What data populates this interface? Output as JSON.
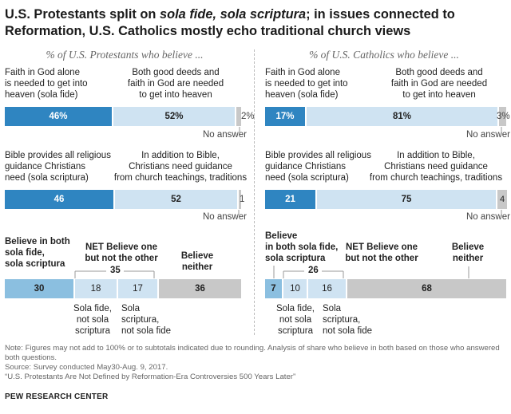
{
  "title_part1": "U.S. Protestants split on ",
  "title_italic1": "sola fide, sola scriptura",
  "title_part2": "; in issues connected to Reformation, U.S. Catholics mostly echo traditional church views",
  "colors": {
    "dark_blue": "#2f85c1",
    "light_blue": "#cfe3f2",
    "mid_blue": "#8bbfe0",
    "gray": "#c8c8c8",
    "na_gray": "#c8c8c8"
  },
  "chart_data": [
    {
      "panel": "protestants",
      "subtitle": "% of U.S. Protestants who believe ...",
      "rows": [
        {
          "type": "bar",
          "categories": [
            "Faith in God alone is needed to get into heaven (sola fide)",
            "Both good deeds and faith in God are needed to get into heaven",
            "No answer"
          ],
          "values": [
            46,
            52,
            2
          ],
          "value_labels": [
            "46%",
            "52%",
            "2%"
          ]
        },
        {
          "type": "bar",
          "categories": [
            "Bible provides all religious guidance Christians need (sola scriptura)",
            "In addition to Bible, Christians need guidance from church teachings, traditions",
            "No answer"
          ],
          "values": [
            46,
            52,
            1
          ],
          "value_labels": [
            "46",
            "52",
            "1"
          ]
        },
        {
          "type": "bar",
          "categories": [
            "Believe in both sola fide, sola scriptura",
            "Sola fide, not sola scriptura",
            "Sola scriptura, not sola fide",
            "Believe neither"
          ],
          "values": [
            30,
            18,
            17,
            36
          ],
          "value_labels": [
            "30",
            "18",
            "17",
            "36"
          ],
          "net_label": "NET Believe one but not the other",
          "net_value": "35"
        }
      ]
    },
    {
      "panel": "catholics",
      "subtitle": "% of U.S. Catholics who believe ...",
      "rows": [
        {
          "type": "bar",
          "categories": [
            "Faith in God alone is needed to get into heaven (sola fide)",
            "Both good deeds and faith in God are needed to get into heaven",
            "No answer"
          ],
          "values": [
            17,
            81,
            3
          ],
          "value_labels": [
            "17%",
            "81%",
            "3%"
          ]
        },
        {
          "type": "bar",
          "categories": [
            "Bible provides all religious guidance Christians need (sola scriptura)",
            "In addition to Bible, Christians need guidance from church teachings, traditions",
            "No answer"
          ],
          "values": [
            21,
            75,
            4
          ],
          "value_labels": [
            "21",
            "75",
            "4"
          ]
        },
        {
          "type": "bar",
          "categories": [
            "Believe in both sola fide, sola scriptura",
            "Sola fide, not sola scriptura",
            "Sola scriptura, not sola fide",
            "Believe neither"
          ],
          "values": [
            7,
            10,
            16,
            68
          ],
          "value_labels": [
            "7",
            "10",
            "16",
            "68"
          ],
          "net_label": "NET Believe one but not the other",
          "net_value": "26"
        }
      ]
    }
  ],
  "labels": {
    "p_sub": "% of U.S. Protestants who believe ...",
    "c_sub": "% of U.S. Catholics who believe ...",
    "fide_l1": "Faith in God alone",
    "fide_l2": "is needed to get into",
    "fide_l3": "heaven (sola fide)",
    "deeds_l1": "Both good deeds and",
    "deeds_l2": "faith in God are needed",
    "deeds_l3": "to get into heaven",
    "noans": "No answer",
    "bible_l1": "Bible provides all religious",
    "bible_l2": "guidance Christians",
    "bible_l3": "need (sola scriptura)",
    "trad_l1": "In addition to Bible,",
    "trad_l2": "Christians need guidance",
    "trad_l3": "from church teachings, traditions",
    "both_p_l1": "Believe in both",
    "both_p_l2": "sola fide,",
    "both_p_l3": "sola scriptura",
    "both_c_l1": "Believe",
    "both_c_l2": "in both sola fide,",
    "both_c_l3": "sola scriptura",
    "net_l1": "NET Believe one",
    "net_l2": "but not the other",
    "net_c": "NET Believe one",
    "net_c2": "but not the other",
    "neither_l1": "Believe",
    "neither_l2": "neither",
    "sf_l1": "Sola fide,",
    "sf_l2": "not sola",
    "sf_l3": "scriptura",
    "ss_l1": "Sola",
    "ss_l2": "scriptura,",
    "ss_l3": "not sola fide",
    "ss_c_l1": "Sola",
    "ss_c_l2": "scriptura,",
    "ss_c_l3": "not sola fide"
  },
  "note": "Note: Figures may not add to 100% or to subtotals indicated due to rounding. Analysis of share who believe in both based on those who answered both questions.",
  "source": "Source: Survey conducted May30-Aug. 9, 2017.",
  "report": "“U.S. Protestants Are Not Defined by Reformation-Era Controversies 500 Years Later”",
  "footer": "PEW RESEARCH CENTER"
}
